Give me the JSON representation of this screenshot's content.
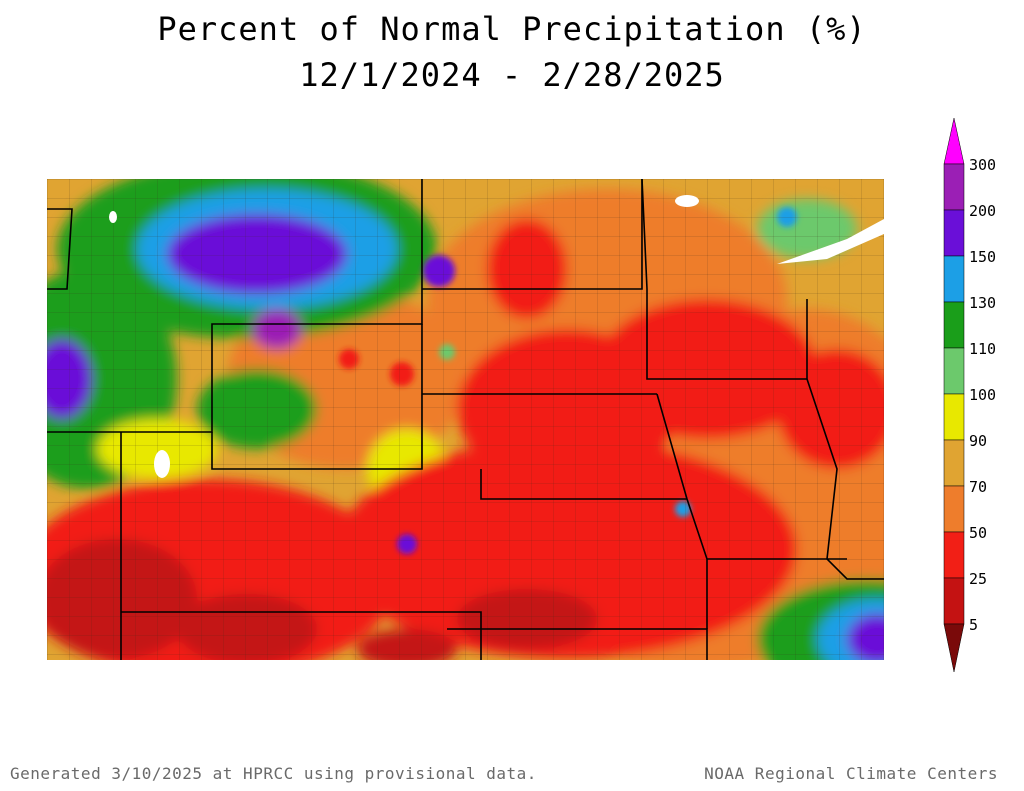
{
  "title": {
    "line1": "Percent of Normal Precipitation (%)",
    "line2": "12/1/2024 - 2/28/2025"
  },
  "legend": {
    "labels": [
      "300",
      "200",
      "150",
      "130",
      "110",
      "100",
      "90",
      "70",
      "50",
      "25",
      "5"
    ],
    "colors": {
      "above_300": "#ff00ff",
      "200_300": "#9b1fb5",
      "150_200": "#6a0fd8",
      "130_150": "#1c9fe6",
      "110_130": "#1a9e1a",
      "100_110": "#6cc96c",
      "90_100": "#e8e800",
      "70_90": "#e0a432",
      "50_70": "#ee7d2c",
      "25_50": "#f21f16",
      "5_25": "#c41212",
      "below_5": "#7a0a0a"
    }
  },
  "footer": {
    "left": "Generated 3/10/2025 at HPRCC using provisional data.",
    "right": "NOAA Regional Climate Centers"
  }
}
